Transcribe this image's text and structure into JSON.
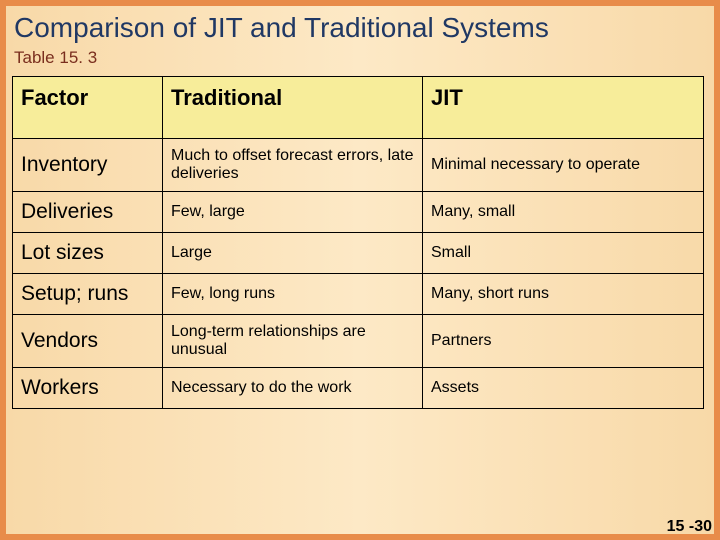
{
  "title": "Comparison of JIT and Traditional Systems",
  "subtitle": "Table 15. 3",
  "table": {
    "columns": [
      "Factor",
      "Traditional",
      "JIT"
    ],
    "rows": [
      {
        "factor": "Inventory",
        "traditional": "Much to offset forecast errors, late deliveries",
        "jit": "Minimal necessary to operate"
      },
      {
        "factor": "Deliveries",
        "traditional": "Few, large",
        "jit": "Many, small"
      },
      {
        "factor": "Lot sizes",
        "traditional": "Large",
        "jit": "Small"
      },
      {
        "factor": "Setup; runs",
        "traditional": "Few, long runs",
        "jit": "Many, short runs"
      },
      {
        "factor": "Vendors",
        "traditional": "Long-term relationships are unusual",
        "jit": "Partners"
      },
      {
        "factor": "Workers",
        "traditional": "Necessary to do the work",
        "jit": "Assets"
      }
    ],
    "header_bg": "#f7ed9a",
    "border_color": "#000000",
    "header_fontsize": 22,
    "factor_fontsize": 21,
    "value_fontsize": 16
  },
  "footer": "15 -30",
  "colors": {
    "outer_bg": "#e88c4a",
    "inner_bg_left": "#f8d9a8",
    "inner_bg_mid": "#fde9c6",
    "title_color": "#203864",
    "subtitle_color": "#7a2e1e"
  }
}
